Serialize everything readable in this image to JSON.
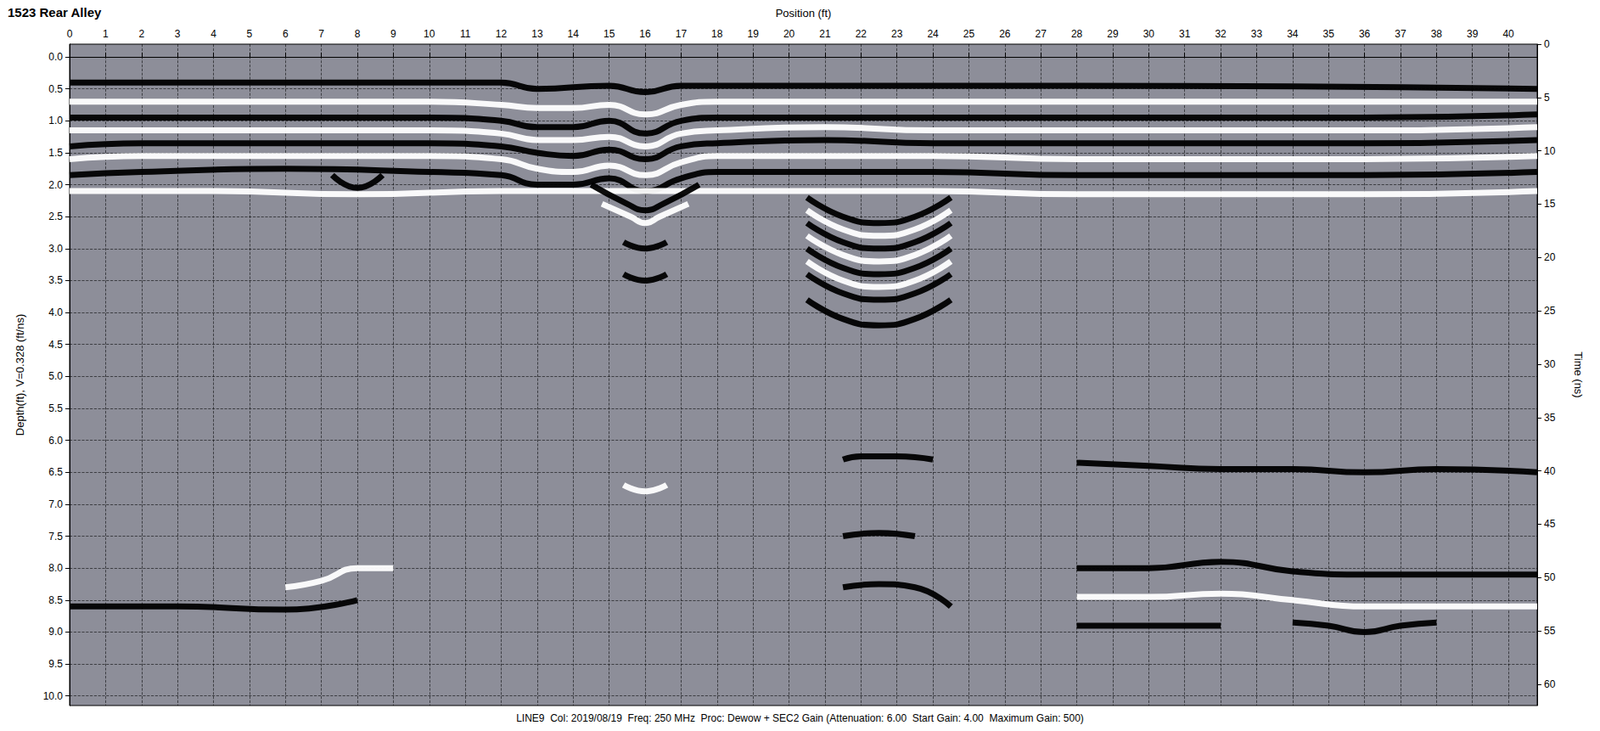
{
  "chart_data": {
    "type": "line",
    "title": "1523 Rear Alley",
    "caption": "LINE9  Col: 2019/08/19  Freq: 250 MHz  Proc: Dewow + SEC2 Gain (Attenuation: 6.00  Start Gain: 4.00  Maximum Gain: 500)",
    "xlabel": "Position (ft)",
    "ylabel": "Depth(ft), V=0.328 (ft/ns)",
    "y2label": "Time (ns)",
    "xlim": [
      0,
      40.8
    ],
    "xticks": [
      0,
      1,
      2,
      3,
      4,
      5,
      6,
      7,
      8,
      9,
      10,
      11,
      12,
      13,
      14,
      15,
      16,
      17,
      18,
      19,
      20,
      21,
      22,
      23,
      24,
      25,
      26,
      27,
      28,
      29,
      30,
      31,
      32,
      33,
      34,
      35,
      36,
      37,
      38,
      39,
      40
    ],
    "ylim": [
      -0.2,
      10.15
    ],
    "yticks": [
      {
        "value": 0,
        "label": "0.0"
      },
      {
        "value": 0.5,
        "label": "0.5"
      },
      {
        "value": 1,
        "label": "1.0"
      },
      {
        "value": 1.5,
        "label": "1.5"
      },
      {
        "value": 2,
        "label": "2.0"
      },
      {
        "value": 2.5,
        "label": "2.5"
      },
      {
        "value": 3,
        "label": "3.0"
      },
      {
        "value": 3.5,
        "label": "3.5"
      },
      {
        "value": 4,
        "label": "4.0"
      },
      {
        "value": 4.5,
        "label": "4.5"
      },
      {
        "value": 5,
        "label": "5.0"
      },
      {
        "value": 5.5,
        "label": "5.5"
      },
      {
        "value": 6,
        "label": "6.0"
      },
      {
        "value": 6.5,
        "label": "6.5"
      },
      {
        "value": 7,
        "label": "7.0"
      },
      {
        "value": 7.5,
        "label": "7.5"
      },
      {
        "value": 8,
        "label": "8.0"
      },
      {
        "value": 8.5,
        "label": "8.5"
      },
      {
        "value": 9,
        "label": "9.0"
      },
      {
        "value": 9.5,
        "label": "9.5"
      },
      {
        "value": 10,
        "label": "10.0"
      }
    ],
    "y2lim": [
      0,
      62
    ],
    "y2ticks": [
      0,
      5,
      10,
      15,
      20,
      25,
      30,
      35,
      40,
      45,
      50,
      55,
      60
    ],
    "grid": true,
    "series": [
      {
        "color": "#000000",
        "x": [
          0,
          12,
          13,
          15,
          16,
          17,
          20,
          28,
          40.8
        ],
        "values": [
          0.4,
          0.4,
          0.5,
          0.45,
          0.55,
          0.45,
          0.45,
          0.45,
          0.5
        ]
      },
      {
        "color": "#ffffff",
        "x": [
          0,
          2,
          6,
          10,
          12,
          13,
          14,
          15,
          16,
          17,
          18,
          21,
          24,
          28,
          32,
          36,
          40.8
        ],
        "values": [
          0.7,
          0.7,
          0.7,
          0.7,
          0.75,
          0.8,
          0.8,
          0.75,
          0.9,
          0.75,
          0.7,
          0.7,
          0.7,
          0.7,
          0.7,
          0.7,
          0.7
        ]
      },
      {
        "color": "#000000",
        "x": [
          0,
          2,
          6,
          10,
          12,
          13,
          14,
          15,
          16,
          17,
          18,
          21,
          24,
          28,
          32,
          36,
          40.8
        ],
        "values": [
          0.95,
          0.95,
          0.95,
          0.95,
          1.0,
          1.1,
          1.1,
          1.0,
          1.2,
          1.0,
          0.95,
          0.95,
          0.95,
          0.95,
          0.95,
          0.95,
          0.9
        ]
      },
      {
        "color": "#ffffff",
        "x": [
          0,
          2,
          6,
          10,
          12,
          13,
          14,
          15,
          16,
          17,
          18,
          21,
          24,
          28,
          32,
          36,
          40.8
        ],
        "values": [
          1.15,
          1.15,
          1.15,
          1.15,
          1.2,
          1.3,
          1.3,
          1.25,
          1.4,
          1.2,
          1.15,
          1.1,
          1.15,
          1.15,
          1.15,
          1.15,
          1.1
        ]
      },
      {
        "color": "#000000",
        "x": [
          0,
          2,
          6,
          10,
          12,
          13,
          14,
          15,
          16,
          17,
          18,
          21,
          24,
          28,
          32,
          36,
          40.8
        ],
        "values": [
          1.4,
          1.35,
          1.35,
          1.35,
          1.4,
          1.5,
          1.55,
          1.45,
          1.6,
          1.4,
          1.35,
          1.3,
          1.35,
          1.35,
          1.35,
          1.35,
          1.3
        ]
      },
      {
        "color": "#ffffff",
        "x": [
          0,
          2,
          6,
          10,
          12,
          13,
          14,
          15,
          16,
          17,
          18,
          21,
          24,
          28,
          32,
          36,
          40.8
        ],
        "values": [
          1.6,
          1.55,
          1.55,
          1.55,
          1.6,
          1.75,
          1.8,
          1.7,
          1.85,
          1.65,
          1.55,
          1.55,
          1.55,
          1.6,
          1.6,
          1.6,
          1.55
        ]
      },
      {
        "color": "#000000",
        "x": [
          0,
          2,
          6,
          10,
          12,
          13,
          14,
          15,
          16,
          17,
          18,
          21,
          24,
          28,
          32,
          36,
          40.8
        ],
        "values": [
          1.85,
          1.8,
          1.75,
          1.8,
          1.85,
          2.0,
          2.0,
          1.9,
          2.1,
          1.9,
          1.8,
          1.8,
          1.8,
          1.85,
          1.85,
          1.85,
          1.8
        ]
      },
      {
        "color": "#ffffff",
        "x": [
          0,
          4,
          8,
          12,
          18,
          24,
          28,
          32,
          36,
          40.8
        ],
        "values": [
          2.1,
          2.1,
          2.15,
          2.1,
          2.1,
          2.1,
          2.15,
          2.15,
          2.15,
          2.1
        ]
      },
      {
        "color": "#000000",
        "x": [
          14.5,
          15.5,
          16,
          16.5,
          17.5
        ],
        "values": [
          2.0,
          2.3,
          2.4,
          2.3,
          2.0
        ]
      },
      {
        "color": "#ffffff",
        "x": [
          14.8,
          15.6,
          16,
          16.4,
          17.2
        ],
        "values": [
          2.3,
          2.5,
          2.6,
          2.5,
          2.3
        ]
      },
      {
        "color": "#000000",
        "x": [
          7.3,
          8,
          8.7
        ],
        "values": [
          1.85,
          2.05,
          1.85
        ]
      },
      {
        "color": "#000000",
        "x": [
          20.5,
          21.5,
          22.5,
          23.5,
          24.5
        ],
        "values": [
          2.2,
          2.5,
          2.6,
          2.5,
          2.2
        ]
      },
      {
        "color": "#ffffff",
        "x": [
          20.5,
          21.5,
          22.5,
          23.5,
          24.5
        ],
        "values": [
          2.4,
          2.7,
          2.8,
          2.7,
          2.4
        ]
      },
      {
        "color": "#000000",
        "x": [
          20.5,
          21.5,
          22.5,
          23.5,
          24.5
        ],
        "values": [
          2.6,
          2.9,
          3.0,
          2.9,
          2.6
        ]
      },
      {
        "color": "#ffffff",
        "x": [
          20.5,
          21.5,
          22.5,
          23.5,
          24.5
        ],
        "values": [
          2.8,
          3.1,
          3.2,
          3.1,
          2.8
        ]
      },
      {
        "color": "#000000",
        "x": [
          20.5,
          21.5,
          22.5,
          23.5,
          24.5
        ],
        "values": [
          3.0,
          3.3,
          3.4,
          3.3,
          3.0
        ]
      },
      {
        "color": "#ffffff",
        "x": [
          20.5,
          21.5,
          22.5,
          23.5,
          24.5
        ],
        "values": [
          3.2,
          3.5,
          3.6,
          3.5,
          3.2
        ]
      },
      {
        "color": "#000000",
        "x": [
          20.5,
          21.5,
          22.5,
          23.5,
          24.5
        ],
        "values": [
          3.4,
          3.7,
          3.8,
          3.7,
          3.4
        ]
      },
      {
        "color": "#000000",
        "x": [
          20.5,
          21.5,
          22.5,
          23.5,
          24.5
        ],
        "values": [
          3.8,
          4.1,
          4.2,
          4.1,
          3.8
        ]
      },
      {
        "color": "#000000",
        "x": [
          15.4,
          16,
          16.6
        ],
        "values": [
          2.9,
          3.0,
          2.9
        ]
      },
      {
        "color": "#000000",
        "x": [
          15.4,
          16,
          16.6
        ],
        "values": [
          3.4,
          3.5,
          3.4
        ]
      },
      {
        "color": "#ffffff",
        "x": [
          15.4,
          16,
          16.6
        ],
        "values": [
          6.7,
          6.8,
          6.7
        ]
      },
      {
        "color": "#000000",
        "x": [
          21.5,
          22,
          23,
          24
        ],
        "values": [
          6.3,
          6.25,
          6.25,
          6.3
        ]
      },
      {
        "color": "#000000",
        "x": [
          21.5,
          22.5,
          23.5
        ],
        "values": [
          7.5,
          7.45,
          7.5
        ]
      },
      {
        "color": "#000000",
        "x": [
          21.5,
          22.5,
          23.5,
          24.5
        ],
        "values": [
          8.3,
          8.25,
          8.3,
          8.6
        ]
      },
      {
        "color": "#000000",
        "x": [
          0,
          3,
          6,
          8
        ],
        "values": [
          8.6,
          8.6,
          8.65,
          8.5
        ]
      },
      {
        "color": "#ffffff",
        "x": [
          6,
          7,
          8,
          9
        ],
        "values": [
          8.3,
          8.2,
          8.0,
          8.0
        ]
      },
      {
        "color": "#000000",
        "x": [
          28,
          30,
          32,
          34,
          36,
          38,
          40.8
        ],
        "values": [
          6.35,
          6.4,
          6.45,
          6.45,
          6.5,
          6.45,
          6.5
        ]
      },
      {
        "color": "#000000",
        "x": [
          28,
          30,
          32,
          34,
          36,
          38,
          40.8
        ],
        "values": [
          8.0,
          8.0,
          7.9,
          8.05,
          8.1,
          8.1,
          8.1
        ]
      },
      {
        "color": "#000000",
        "x": [
          28,
          30,
          32
        ],
        "values": [
          8.9,
          8.9,
          8.9
        ]
      },
      {
        "color": "#000000",
        "x": [
          34,
          35,
          36,
          37,
          38
        ],
        "values": [
          8.85,
          8.9,
          9.0,
          8.9,
          8.85
        ]
      },
      {
        "color": "#ffffff",
        "x": [
          28,
          30,
          32,
          34,
          36,
          38,
          40.8
        ],
        "values": [
          8.45,
          8.45,
          8.4,
          8.5,
          8.6,
          8.6,
          8.6
        ]
      }
    ]
  }
}
